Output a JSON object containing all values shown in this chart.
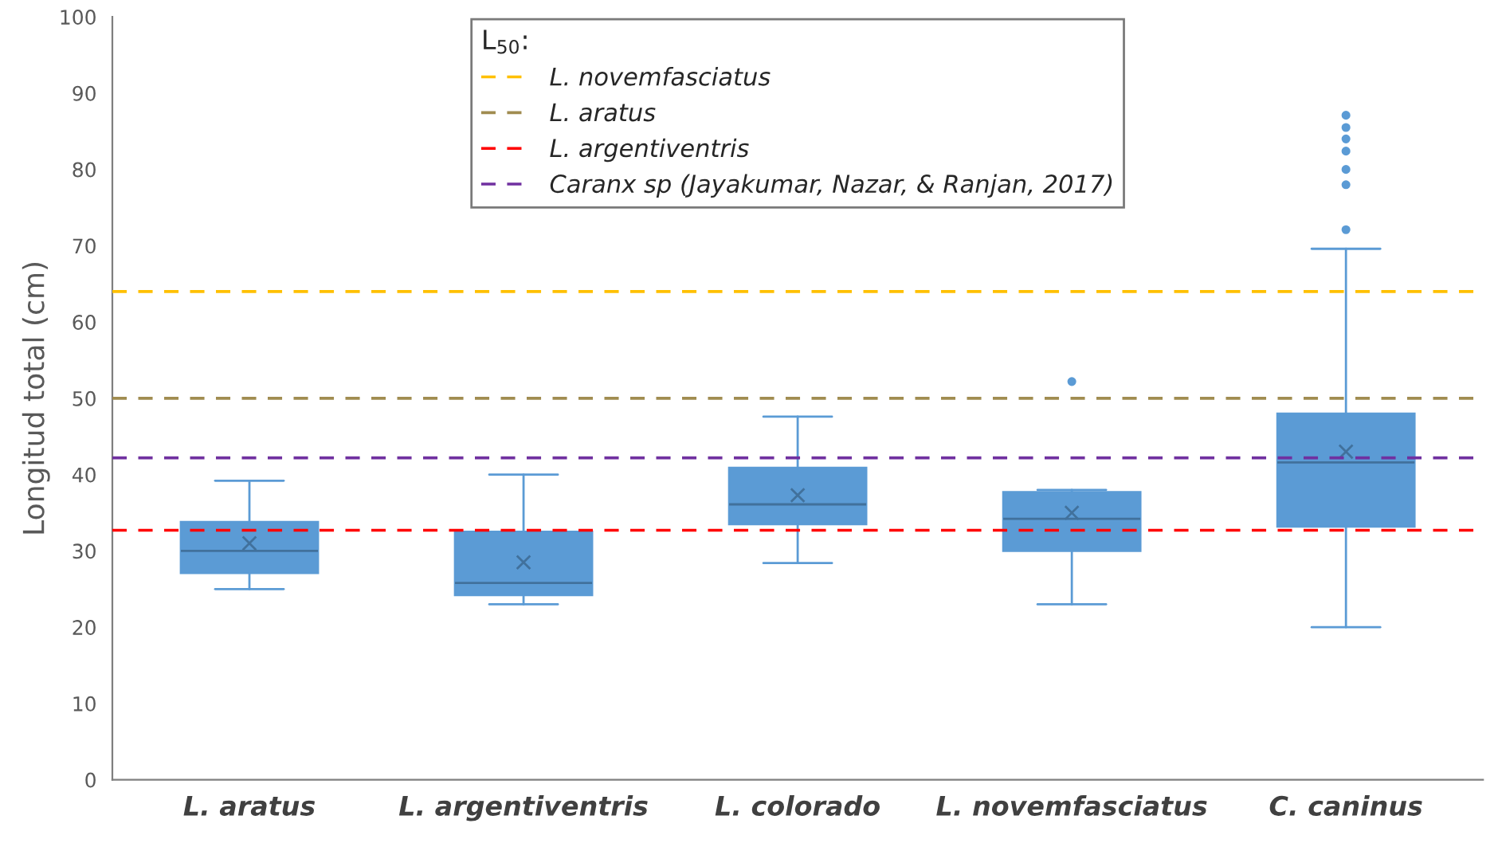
{
  "chart_data": {
    "type": "box",
    "ylabel": "Longitud total (cm)",
    "legend_title": "L$_{50}$:",
    "categories": [
      "L. aratus",
      "L. argentiventris",
      "L. colorado",
      "L. novemfasciatus",
      "C. caninus"
    ],
    "series": [
      {
        "color": "#5b9bd5",
        "boxes": [
          {
            "low": 25,
            "q1": 27.1,
            "median": 30,
            "q3": 33.8,
            "high": 39.2,
            "mean": 31
          },
          {
            "low": 23,
            "q1": 24.2,
            "median": 25.8,
            "q3": 32.5,
            "high": 40,
            "mean": 28.5
          },
          {
            "low": 28.4,
            "q1": 33.5,
            "median": 36.1,
            "q3": 40.9,
            "high": 47.6,
            "mean": 37.3
          },
          {
            "low": 23,
            "q1": 30,
            "median": 34.2,
            "q3": 37.7,
            "high": 38,
            "mean": 35,
            "outliers": [
              52.2
            ]
          },
          {
            "low": 20,
            "q1": 33.2,
            "median": 41.6,
            "q3": 48,
            "high": 69.6,
            "mean": 43,
            "outliers": [
              87.1,
              85.5,
              84,
              82.4,
              80,
              78,
              72.1
            ]
          }
        ]
      }
    ],
    "ylim": [
      0,
      100
    ],
    "yticks": [
      0,
      10,
      20,
      30,
      40,
      50,
      60,
      70,
      80,
      90,
      100
    ],
    "ref_lines": [
      {
        "axis": "y",
        "value": 64,
        "label": "L. novemfasciatus",
        "color": "#ffc000",
        "line_style": "dashed"
      },
      {
        "axis": "y",
        "value": 50,
        "label": "L. aratus",
        "color": "#a08c50",
        "line_style": "dashed"
      },
      {
        "axis": "y",
        "value": 32.7,
        "label": "L. argentiventris",
        "color": "#ff0000",
        "line_style": "dashed"
      },
      {
        "axis": "y",
        "value": 42.2,
        "label": "Caranx sp (Jayakumar, Nazar, & Ranjan, 2017)",
        "color": "#7030a0",
        "line_style": "dashed"
      }
    ],
    "grid": false,
    "legend": "top"
  }
}
